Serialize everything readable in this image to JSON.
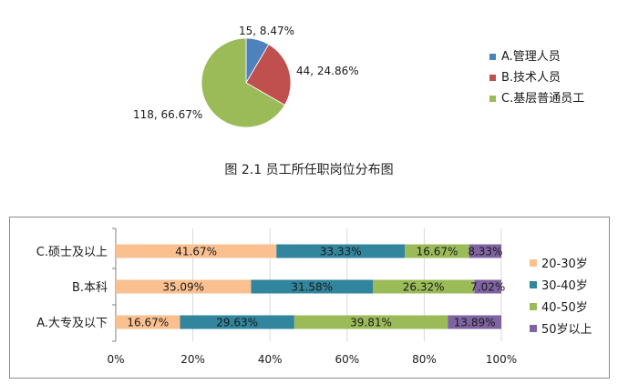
{
  "chart_data": [
    {
      "type": "pie",
      "categories": [
        "A.管理人员",
        "B.技术人员",
        "C.基层普通员工"
      ],
      "values": [
        15,
        44,
        118
      ],
      "data_labels": [
        "15, 8.47%",
        "44, 24.86%",
        "118, 66.67%"
      ],
      "colors": [
        "#4F81BD",
        "#C0504D",
        "#9BBB59"
      ],
      "legend": "right"
    },
    {
      "type": "bar",
      "orientation": "horizontal",
      "stacked": "percent",
      "categories": [
        "C.硕士及以上",
        "B.本科",
        "A.大专及以下"
      ],
      "series": [
        {
          "name": "20-30岁",
          "values": [
            41.67,
            35.09,
            16.67
          ],
          "labels": [
            "41.67%",
            "35.09%",
            "16.67%"
          ],
          "color": "#FAC090"
        },
        {
          "name": "30-40岁",
          "values": [
            33.33,
            31.58,
            29.63
          ],
          "labels": [
            "33.33%",
            "31.58%",
            "29.63%"
          ],
          "color": "#31859C"
        },
        {
          "name": "40-50岁",
          "values": [
            16.67,
            26.32,
            39.81
          ],
          "labels": [
            "16.67%",
            "26.32%",
            "39.81%"
          ],
          "color": "#9BBB59"
        },
        {
          "name": "50岁以上",
          "values": [
            8.33,
            7.02,
            13.89
          ],
          "labels": [
            "8.33%",
            "7.02%",
            "13.89%"
          ],
          "color": "#8064A2"
        }
      ],
      "xlim": [
        0,
        100
      ],
      "xticks": [
        "0%",
        "20%",
        "40%",
        "60%",
        "80%",
        "100%"
      ],
      "grid": true,
      "legend": "right"
    }
  ],
  "caption": "图 2.1  员工所任职岗位分布图"
}
